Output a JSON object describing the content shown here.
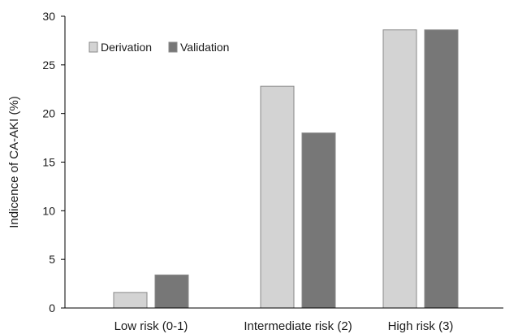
{
  "chart_data": {
    "type": "bar",
    "categories": [
      "Low risk (0-1)",
      "Intermediate risk (2)",
      "High risk (3)"
    ],
    "series": [
      {
        "name": "Derivation",
        "values": [
          1.6,
          22.8,
          28.6
        ],
        "color": "#d3d3d3"
      },
      {
        "name": "Validation",
        "values": [
          3.4,
          18.0,
          28.6
        ],
        "color": "#777777"
      }
    ],
    "ylabel": "Indicence of CA-AKI (%)",
    "xlabel": "",
    "ylim": [
      0,
      30
    ],
    "yticks": [
      0,
      5,
      10,
      15,
      20,
      25,
      30
    ],
    "grid": false,
    "legend_position": "top-left"
  }
}
